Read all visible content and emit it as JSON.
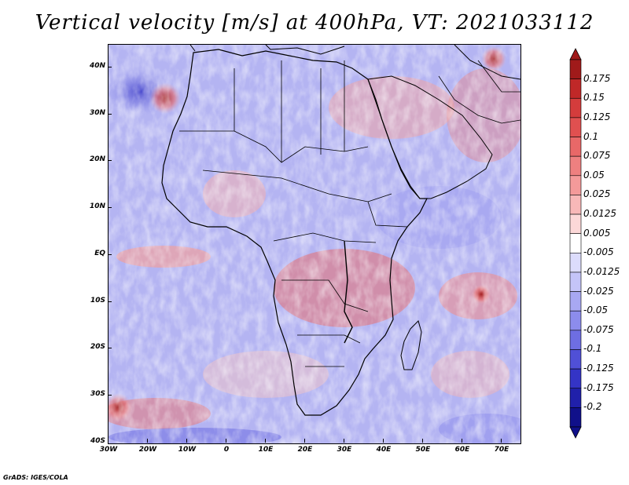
{
  "title": "Vertical velocity [m/s] at 400hPa, VT: 2021033112",
  "credit": "GrADS: IGES/COLA",
  "map": {
    "region": "Africa and Middle East",
    "lat_labels": [
      "40N",
      "30N",
      "20N",
      "10N",
      "EQ",
      "10S",
      "20S",
      "30S",
      "40S"
    ],
    "lon_labels": [
      "30W",
      "20W",
      "10W",
      "0",
      "10E",
      "20E",
      "30E",
      "40E",
      "50E",
      "60E",
      "70E"
    ]
  },
  "colorbar": {
    "labels": [
      "0.175",
      "0.15",
      "0.125",
      "0.1",
      "0.075",
      "0.05",
      "0.025",
      "0.0125",
      "0.005",
      "-0.005",
      "-0.0125",
      "-0.025",
      "-0.05",
      "-0.075",
      "-0.1",
      "-0.125",
      "-0.175",
      "-0.2"
    ],
    "colors": [
      "#a01a1a",
      "#c02828",
      "#d43c3c",
      "#e05050",
      "#e86868",
      "#ee8080",
      "#f49a9a",
      "#f8b8b8",
      "#fcd8d8",
      "#ffffff",
      "#dcdcfc",
      "#c4c4f8",
      "#a8a8f2",
      "#8c8cec",
      "#6e6ee2",
      "#5050d6",
      "#3434c6",
      "#2020aa",
      "#10108a"
    ]
  }
}
